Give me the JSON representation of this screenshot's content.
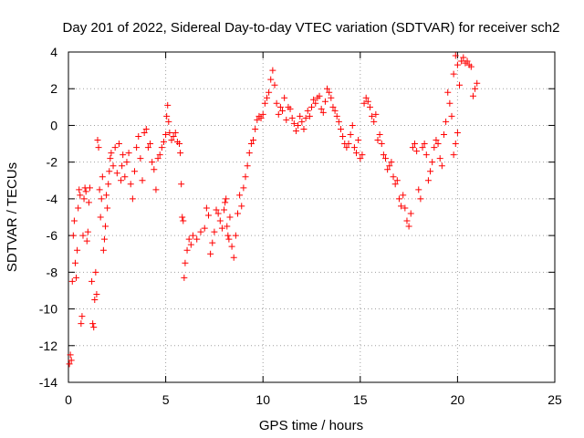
{
  "chart_data": {
    "type": "scatter",
    "title": "Day 201 of 2022, Sidereal Day-to-day VTEC variation (SDTVAR) for receiver sch2",
    "xlabel": "GPS time / hours",
    "ylabel": "SDTVAR / TECUs",
    "xlim": [
      0,
      25
    ],
    "ylim": [
      -14,
      4
    ],
    "xticks": [
      0,
      5,
      10,
      15,
      20,
      25
    ],
    "yticks": [
      -14,
      -12,
      -10,
      -8,
      -6,
      -4,
      -2,
      0,
      2,
      4
    ],
    "grid": true,
    "marker": "+",
    "series": [
      {
        "name": "SDTVAR",
        "color": "#ff0000",
        "points": [
          [
            0.05,
            -13.0
          ],
          [
            0.1,
            -12.5
          ],
          [
            0.15,
            -12.8
          ],
          [
            0.2,
            -8.5
          ],
          [
            0.25,
            -6.0
          ],
          [
            0.3,
            -5.2
          ],
          [
            0.35,
            -7.5
          ],
          [
            0.4,
            -8.3
          ],
          [
            0.45,
            -6.8
          ],
          [
            0.5,
            -4.5
          ],
          [
            0.55,
            -3.5
          ],
          [
            0.6,
            -3.8
          ],
          [
            0.65,
            -10.8
          ],
          [
            0.7,
            -10.4
          ],
          [
            0.75,
            -6.0
          ],
          [
            0.8,
            -4.0
          ],
          [
            0.85,
            -3.4
          ],
          [
            0.9,
            -3.6
          ],
          [
            0.95,
            -6.3
          ],
          [
            1.0,
            -5.8
          ],
          [
            1.05,
            -4.2
          ],
          [
            1.1,
            -3.4
          ],
          [
            1.2,
            -8.5
          ],
          [
            1.25,
            -10.8
          ],
          [
            1.3,
            -11.0
          ],
          [
            1.35,
            -9.5
          ],
          [
            1.4,
            -8.0
          ],
          [
            1.45,
            -9.2
          ],
          [
            1.5,
            -0.8
          ],
          [
            1.55,
            -1.2
          ],
          [
            1.6,
            -3.5
          ],
          [
            1.65,
            -5.0
          ],
          [
            1.7,
            -4.0
          ],
          [
            1.75,
            -2.8
          ],
          [
            1.8,
            -6.8
          ],
          [
            1.85,
            -6.2
          ],
          [
            1.9,
            -5.5
          ],
          [
            1.95,
            -3.8
          ],
          [
            2.0,
            -4.5
          ],
          [
            2.05,
            -3.2
          ],
          [
            2.1,
            -2.5
          ],
          [
            2.15,
            -1.8
          ],
          [
            2.2,
            -1.5
          ],
          [
            2.3,
            -2.2
          ],
          [
            2.4,
            -1.2
          ],
          [
            2.5,
            -2.6
          ],
          [
            2.6,
            -1.0
          ],
          [
            2.7,
            -3.0
          ],
          [
            2.75,
            -2.2
          ],
          [
            2.8,
            -1.6
          ],
          [
            2.9,
            -2.8
          ],
          [
            3.0,
            -2.0
          ],
          [
            3.1,
            -1.5
          ],
          [
            3.2,
            -3.2
          ],
          [
            3.3,
            -4.0
          ],
          [
            3.4,
            -2.5
          ],
          [
            3.5,
            -1.2
          ],
          [
            3.6,
            -0.6
          ],
          [
            3.7,
            -1.8
          ],
          [
            3.8,
            -3.0
          ],
          [
            3.9,
            -0.4
          ],
          [
            4.0,
            -0.2
          ],
          [
            4.1,
            -1.2
          ],
          [
            4.2,
            -1.0
          ],
          [
            4.3,
            -2.0
          ],
          [
            4.4,
            -2.4
          ],
          [
            4.5,
            -3.5
          ],
          [
            4.6,
            -1.8
          ],
          [
            4.7,
            -1.6
          ],
          [
            4.8,
            -1.2
          ],
          [
            4.9,
            -0.9
          ],
          [
            5.0,
            -0.5
          ],
          [
            5.05,
            0.5
          ],
          [
            5.1,
            1.1
          ],
          [
            5.15,
            0.2
          ],
          [
            5.2,
            -0.4
          ],
          [
            5.3,
            -0.8
          ],
          [
            5.4,
            -0.6
          ],
          [
            5.5,
            -0.4
          ],
          [
            5.6,
            -0.9
          ],
          [
            5.7,
            -1.0
          ],
          [
            5.75,
            -1.5
          ],
          [
            5.8,
            -3.2
          ],
          [
            5.85,
            -5.0
          ],
          [
            5.9,
            -5.2
          ],
          [
            5.95,
            -8.3
          ],
          [
            6.0,
            -7.5
          ],
          [
            6.1,
            -6.8
          ],
          [
            6.2,
            -6.2
          ],
          [
            6.3,
            -6.5
          ],
          [
            6.4,
            -6.0
          ],
          [
            6.6,
            -6.2
          ],
          [
            6.8,
            -5.8
          ],
          [
            7.0,
            -5.6
          ],
          [
            7.1,
            -4.5
          ],
          [
            7.2,
            -4.9
          ],
          [
            7.3,
            -7.0
          ],
          [
            7.4,
            -6.4
          ],
          [
            7.5,
            -5.8
          ],
          [
            7.6,
            -4.6
          ],
          [
            7.7,
            -4.8
          ],
          [
            7.8,
            -5.2
          ],
          [
            7.9,
            -5.6
          ],
          [
            8.0,
            -4.6
          ],
          [
            8.05,
            -4.2
          ],
          [
            8.1,
            -4.0
          ],
          [
            8.15,
            -5.5
          ],
          [
            8.2,
            -6.0
          ],
          [
            8.25,
            -6.2
          ],
          [
            8.3,
            -5.0
          ],
          [
            8.4,
            -6.6
          ],
          [
            8.5,
            -7.2
          ],
          [
            8.6,
            -6.0
          ],
          [
            8.7,
            -4.8
          ],
          [
            8.8,
            -3.8
          ],
          [
            8.9,
            -4.4
          ],
          [
            9.0,
            -3.4
          ],
          [
            9.1,
            -2.8
          ],
          [
            9.2,
            -2.2
          ],
          [
            9.3,
            -1.5
          ],
          [
            9.4,
            -1.0
          ],
          [
            9.5,
            -0.8
          ],
          [
            9.6,
            -0.2
          ],
          [
            9.7,
            0.3
          ],
          [
            9.8,
            0.5
          ],
          [
            9.9,
            0.4
          ],
          [
            10.0,
            0.6
          ],
          [
            10.1,
            1.2
          ],
          [
            10.2,
            1.5
          ],
          [
            10.3,
            1.8
          ],
          [
            10.4,
            2.5
          ],
          [
            10.5,
            3.0
          ],
          [
            10.6,
            2.2
          ],
          [
            10.7,
            1.2
          ],
          [
            10.8,
            0.6
          ],
          [
            10.9,
            1.0
          ],
          [
            11.0,
            0.8
          ],
          [
            11.1,
            1.5
          ],
          [
            11.2,
            0.3
          ],
          [
            11.3,
            1.0
          ],
          [
            11.4,
            0.9
          ],
          [
            11.5,
            0.4
          ],
          [
            11.6,
            0.1
          ],
          [
            11.7,
            -0.3
          ],
          [
            11.8,
            0.0
          ],
          [
            11.9,
            0.5
          ],
          [
            12.0,
            0.2
          ],
          [
            12.1,
            -0.2
          ],
          [
            12.2,
            0.4
          ],
          [
            12.3,
            0.8
          ],
          [
            12.4,
            0.5
          ],
          [
            12.5,
            1.0
          ],
          [
            12.6,
            1.4
          ],
          [
            12.7,
            1.2
          ],
          [
            12.8,
            1.5
          ],
          [
            12.9,
            1.6
          ],
          [
            13.0,
            0.9
          ],
          [
            13.1,
            0.7
          ],
          [
            13.2,
            1.3
          ],
          [
            13.3,
            2.0
          ],
          [
            13.4,
            1.8
          ],
          [
            13.5,
            1.5
          ],
          [
            13.6,
            1.0
          ],
          [
            13.7,
            0.8
          ],
          [
            13.8,
            0.5
          ],
          [
            13.9,
            0.2
          ],
          [
            14.0,
            -0.2
          ],
          [
            14.1,
            -0.6
          ],
          [
            14.2,
            -1.0
          ],
          [
            14.3,
            -1.2
          ],
          [
            14.4,
            -1.0
          ],
          [
            14.5,
            -0.5
          ],
          [
            14.6,
            0.0
          ],
          [
            14.7,
            -1.2
          ],
          [
            14.8,
            -1.5
          ],
          [
            14.9,
            -0.8
          ],
          [
            15.0,
            -1.8
          ],
          [
            15.1,
            -1.6
          ],
          [
            15.2,
            1.2
          ],
          [
            15.3,
            1.5
          ],
          [
            15.4,
            1.3
          ],
          [
            15.5,
            1.0
          ],
          [
            15.6,
            0.5
          ],
          [
            15.7,
            0.2
          ],
          [
            15.8,
            0.6
          ],
          [
            15.9,
            -0.8
          ],
          [
            16.0,
            -0.5
          ],
          [
            16.1,
            -1.0
          ],
          [
            16.2,
            -1.6
          ],
          [
            16.3,
            -1.8
          ],
          [
            16.4,
            -2.4
          ],
          [
            16.5,
            -2.2
          ],
          [
            16.6,
            -2.0
          ],
          [
            16.7,
            -2.8
          ],
          [
            16.8,
            -3.2
          ],
          [
            16.9,
            -3.0
          ],
          [
            17.0,
            -4.0
          ],
          [
            17.1,
            -4.4
          ],
          [
            17.2,
            -3.8
          ],
          [
            17.3,
            -4.5
          ],
          [
            17.4,
            -5.2
          ],
          [
            17.5,
            -5.5
          ],
          [
            17.6,
            -4.8
          ],
          [
            17.7,
            -1.2
          ],
          [
            17.8,
            -1.0
          ],
          [
            17.9,
            -1.4
          ],
          [
            18.0,
            -3.5
          ],
          [
            18.1,
            -4.0
          ],
          [
            18.2,
            -1.2
          ],
          [
            18.3,
            -1.0
          ],
          [
            18.4,
            -1.6
          ],
          [
            18.5,
            -3.0
          ],
          [
            18.6,
            -2.5
          ],
          [
            18.7,
            -2.0
          ],
          [
            18.8,
            -1.2
          ],
          [
            18.9,
            -0.8
          ],
          [
            19.0,
            -1.0
          ],
          [
            19.1,
            -1.8
          ],
          [
            19.2,
            -2.2
          ],
          [
            19.3,
            -0.5
          ],
          [
            19.4,
            0.2
          ],
          [
            19.5,
            1.8
          ],
          [
            19.6,
            1.2
          ],
          [
            19.7,
            0.5
          ],
          [
            19.8,
            -1.6
          ],
          [
            19.9,
            -1.0
          ],
          [
            20.0,
            -0.4
          ],
          [
            20.1,
            2.2
          ],
          [
            20.2,
            3.5
          ],
          [
            20.3,
            3.7
          ],
          [
            20.4,
            3.4
          ],
          [
            20.5,
            3.5
          ],
          [
            20.6,
            3.3
          ],
          [
            20.7,
            3.2
          ],
          [
            20.8,
            1.6
          ],
          [
            20.9,
            2.0
          ],
          [
            21.0,
            2.3
          ],
          [
            19.9,
            3.8
          ],
          [
            19.8,
            2.8
          ],
          [
            20.0,
            3.3
          ]
        ]
      }
    ]
  }
}
